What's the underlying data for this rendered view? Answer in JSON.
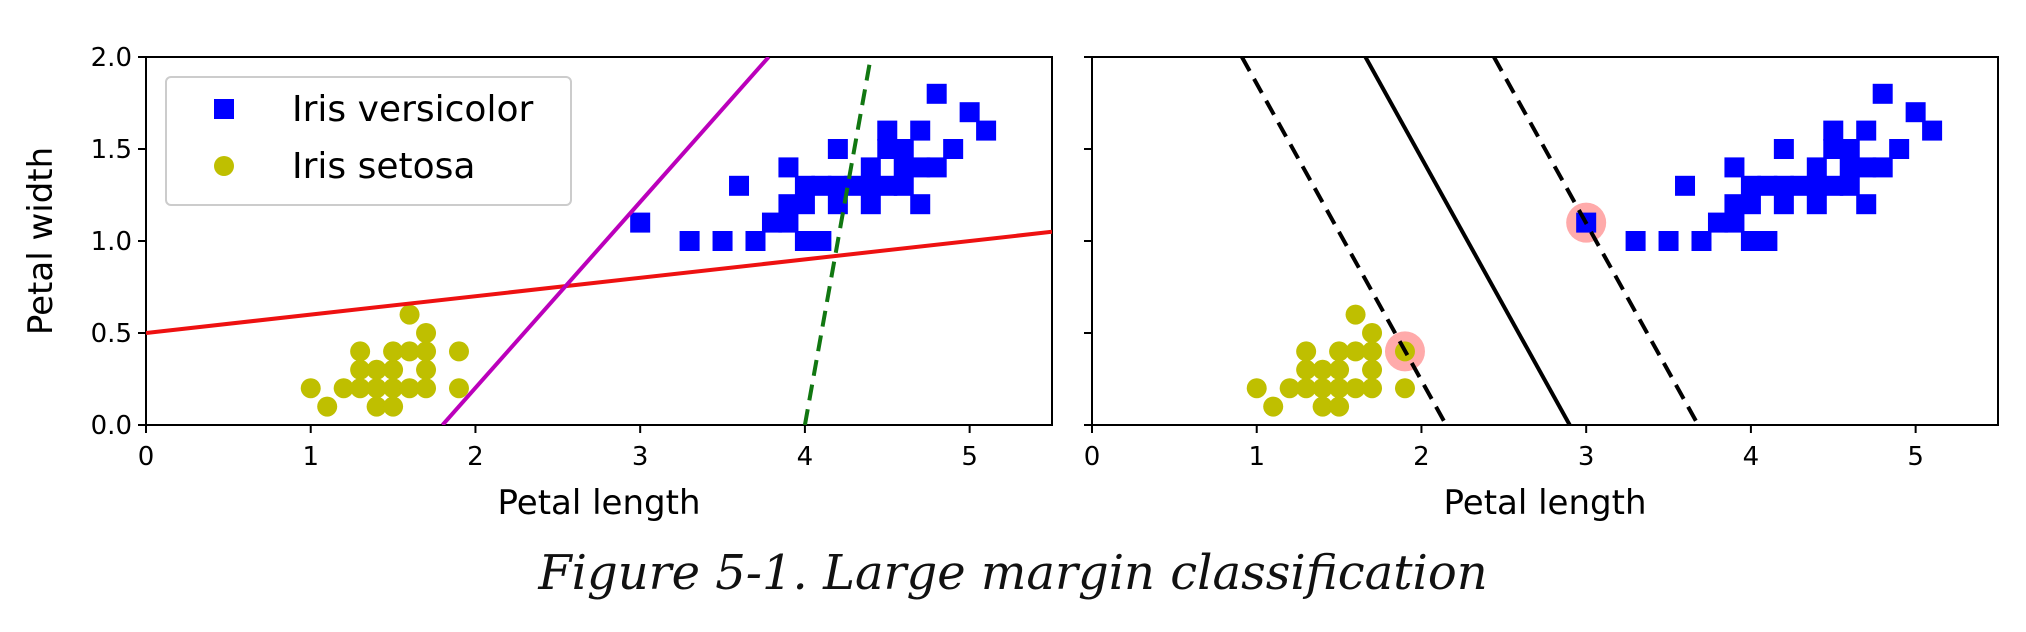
{
  "caption": "Figure 5-1. Large margin classification",
  "colors": {
    "versicolor": "#0000ff",
    "setosa": "#bfbf00",
    "line_red": "#ee1111",
    "line_magenta": "#bb00bb",
    "line_green": "#117711",
    "support_vector_halo": "#ffaaaa",
    "svm_line": "#000000"
  },
  "chart_data": [
    {
      "type": "scatter",
      "xlabel": "Petal length",
      "ylabel": "Petal width",
      "xlim": [
        0,
        5.5
      ],
      "ylim": [
        0,
        2.0
      ],
      "xticks": [
        "0",
        "1",
        "2",
        "3",
        "4",
        "5"
      ],
      "yticks": [
        "0.0",
        "0.5",
        "1.0",
        "1.5",
        "2.0"
      ],
      "grid": false,
      "legend_position": "top-left",
      "series": [
        {
          "name": "Iris versicolor",
          "marker": "square",
          "points": [
            [
              3.0,
              1.1
            ],
            [
              3.3,
              1.0
            ],
            [
              3.5,
              1.0
            ],
            [
              3.6,
              1.3
            ],
            [
              3.7,
              1.0
            ],
            [
              3.8,
              1.1
            ],
            [
              3.9,
              1.1
            ],
            [
              3.9,
              1.2
            ],
            [
              3.9,
              1.4
            ],
            [
              4.0,
              1.0
            ],
            [
              4.0,
              1.2
            ],
            [
              4.0,
              1.3
            ],
            [
              4.1,
              1.0
            ],
            [
              4.1,
              1.3
            ],
            [
              4.2,
              1.2
            ],
            [
              4.2,
              1.3
            ],
            [
              4.2,
              1.5
            ],
            [
              4.3,
              1.3
            ],
            [
              4.4,
              1.2
            ],
            [
              4.4,
              1.3
            ],
            [
              4.4,
              1.4
            ],
            [
              4.5,
              1.3
            ],
            [
              4.5,
              1.5
            ],
            [
              4.5,
              1.6
            ],
            [
              4.6,
              1.3
            ],
            [
              4.6,
              1.4
            ],
            [
              4.6,
              1.5
            ],
            [
              4.7,
              1.2
            ],
            [
              4.7,
              1.4
            ],
            [
              4.7,
              1.6
            ],
            [
              4.8,
              1.4
            ],
            [
              4.8,
              1.8
            ],
            [
              4.9,
              1.5
            ],
            [
              5.0,
              1.7
            ],
            [
              5.1,
              1.6
            ]
          ]
        },
        {
          "name": "Iris setosa",
          "marker": "circle",
          "points": [
            [
              1.0,
              0.2
            ],
            [
              1.1,
              0.1
            ],
            [
              1.2,
              0.2
            ],
            [
              1.3,
              0.2
            ],
            [
              1.3,
              0.3
            ],
            [
              1.3,
              0.4
            ],
            [
              1.4,
              0.1
            ],
            [
              1.4,
              0.2
            ],
            [
              1.4,
              0.3
            ],
            [
              1.5,
              0.1
            ],
            [
              1.5,
              0.2
            ],
            [
              1.5,
              0.3
            ],
            [
              1.5,
              0.4
            ],
            [
              1.6,
              0.2
            ],
            [
              1.6,
              0.4
            ],
            [
              1.6,
              0.6
            ],
            [
              1.7,
              0.2
            ],
            [
              1.7,
              0.3
            ],
            [
              1.7,
              0.4
            ],
            [
              1.7,
              0.5
            ],
            [
              1.9,
              0.2
            ],
            [
              1.9,
              0.4
            ]
          ]
        }
      ],
      "lines": [
        {
          "color_key": "line_red",
          "style": "solid",
          "points": [
            [
              0,
              0.5
            ],
            [
              5.5,
              1.05
            ]
          ]
        },
        {
          "color_key": "line_magenta",
          "style": "solid",
          "points": [
            [
              1.8,
              0.0
            ],
            [
              3.78,
              2.0
            ]
          ]
        },
        {
          "color_key": "line_green",
          "style": "dashed",
          "points": [
            [
              4.0,
              0.0
            ],
            [
              4.4,
              2.0
            ]
          ]
        }
      ]
    },
    {
      "type": "scatter",
      "xlabel": "Petal length",
      "ylabel": "",
      "xlim": [
        0,
        5.5
      ],
      "ylim": [
        0,
        2.0
      ],
      "xticks": [
        "0",
        "1",
        "2",
        "3",
        "4",
        "5"
      ],
      "yticks": [
        "",
        "",
        "",
        "",
        ""
      ],
      "grid": false,
      "series": [
        {
          "name": "",
          "marker": "square",
          "points": [
            [
              3.0,
              1.1
            ],
            [
              3.3,
              1.0
            ],
            [
              3.5,
              1.0
            ],
            [
              3.6,
              1.3
            ],
            [
              3.7,
              1.0
            ],
            [
              3.8,
              1.1
            ],
            [
              3.9,
              1.1
            ],
            [
              3.9,
              1.2
            ],
            [
              3.9,
              1.4
            ],
            [
              4.0,
              1.0
            ],
            [
              4.0,
              1.2
            ],
            [
              4.0,
              1.3
            ],
            [
              4.1,
              1.0
            ],
            [
              4.1,
              1.3
            ],
            [
              4.2,
              1.2
            ],
            [
              4.2,
              1.3
            ],
            [
              4.2,
              1.5
            ],
            [
              4.3,
              1.3
            ],
            [
              4.4,
              1.2
            ],
            [
              4.4,
              1.3
            ],
            [
              4.4,
              1.4
            ],
            [
              4.5,
              1.3
            ],
            [
              4.5,
              1.5
            ],
            [
              4.5,
              1.6
            ],
            [
              4.6,
              1.3
            ],
            [
              4.6,
              1.4
            ],
            [
              4.6,
              1.5
            ],
            [
              4.7,
              1.2
            ],
            [
              4.7,
              1.4
            ],
            [
              4.7,
              1.6
            ],
            [
              4.8,
              1.4
            ],
            [
              4.8,
              1.8
            ],
            [
              4.9,
              1.5
            ],
            [
              5.0,
              1.7
            ],
            [
              5.1,
              1.6
            ]
          ]
        },
        {
          "name": "",
          "marker": "circle",
          "points": [
            [
              1.0,
              0.2
            ],
            [
              1.1,
              0.1
            ],
            [
              1.2,
              0.2
            ],
            [
              1.3,
              0.2
            ],
            [
              1.3,
              0.3
            ],
            [
              1.3,
              0.4
            ],
            [
              1.4,
              0.1
            ],
            [
              1.4,
              0.2
            ],
            [
              1.4,
              0.3
            ],
            [
              1.5,
              0.1
            ],
            [
              1.5,
              0.2
            ],
            [
              1.5,
              0.3
            ],
            [
              1.5,
              0.4
            ],
            [
              1.6,
              0.2
            ],
            [
              1.6,
              0.4
            ],
            [
              1.6,
              0.6
            ],
            [
              1.7,
              0.2
            ],
            [
              1.7,
              0.3
            ],
            [
              1.7,
              0.4
            ],
            [
              1.7,
              0.5
            ],
            [
              1.9,
              0.2
            ],
            [
              1.9,
              0.4
            ]
          ]
        }
      ],
      "support_vectors": [
        [
          1.9,
          0.4
        ],
        [
          3.0,
          1.1
        ]
      ],
      "lines": [
        {
          "color_key": "svm_line",
          "style": "solid",
          "points": [
            [
              1.66,
              2.0
            ],
            [
              2.9,
              0.0
            ]
          ]
        },
        {
          "color_key": "svm_line",
          "style": "dashed",
          "points": [
            [
              0.91,
              2.0
            ],
            [
              2.15,
              0.0
            ]
          ]
        },
        {
          "color_key": "svm_line",
          "style": "dashed",
          "points": [
            [
              2.44,
              2.0
            ],
            [
              3.68,
              0.0
            ]
          ]
        }
      ]
    }
  ]
}
